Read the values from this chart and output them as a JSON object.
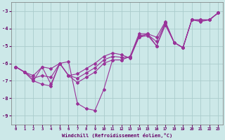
{
  "xlabel": "Windchill (Refroidissement éolien,°C)",
  "bg_color": "#cce8e8",
  "grid_color": "#aacccc",
  "line_color": "#993399",
  "ylim": [
    -9.5,
    -2.5
  ],
  "xlim": [
    -0.5,
    23.5
  ],
  "yticks": [
    -9,
    -8,
    -7,
    -6,
    -5,
    -4,
    -3
  ],
  "xticks": [
    0,
    1,
    2,
    3,
    4,
    5,
    6,
    7,
    8,
    9,
    10,
    11,
    12,
    13,
    14,
    15,
    16,
    17,
    18,
    19,
    20,
    21,
    22,
    23
  ],
  "x": [
    0,
    1,
    2,
    3,
    4,
    5,
    6,
    7,
    8,
    9,
    10,
    11,
    12,
    13,
    14,
    15,
    16,
    17,
    18,
    19,
    20,
    21,
    22,
    23
  ],
  "line1": [
    -6.2,
    -6.5,
    -6.7,
    -6.2,
    -6.3,
    -6.0,
    -6.7,
    -6.6,
    -6.3,
    -6.0,
    -5.6,
    -5.4,
    -5.5,
    -5.7,
    -4.5,
    -4.4,
    -5.0,
    -3.7,
    -4.8,
    -5.1,
    -3.5,
    -3.6,
    -3.5,
    -3.1
  ],
  "line2": [
    -6.2,
    -6.5,
    -7.0,
    -7.2,
    -7.3,
    -6.0,
    -6.7,
    -7.1,
    -6.8,
    -6.5,
    -6.0,
    -5.8,
    -5.8,
    -5.6,
    -4.3,
    -4.3,
    -4.5,
    -3.6,
    -4.8,
    -5.1,
    -3.5,
    -3.5,
    -3.5,
    -3.1
  ],
  "line3": [
    -6.2,
    -6.5,
    -6.85,
    -6.7,
    -6.8,
    -6.0,
    -6.7,
    -6.85,
    -6.55,
    -6.25,
    -5.8,
    -5.6,
    -5.65,
    -5.65,
    -4.4,
    -4.35,
    -4.75,
    -3.65,
    -4.8,
    -5.1,
    -3.5,
    -3.55,
    -3.5,
    -3.1
  ],
  "line4": [
    -6.2,
    -6.5,
    -7.0,
    -6.2,
    -7.2,
    -6.0,
    -5.9,
    -8.3,
    -8.6,
    -8.7,
    -7.5,
    -5.8,
    -5.8,
    -5.6,
    -4.5,
    -4.3,
    -5.0,
    -3.8,
    -4.8,
    -5.1,
    -3.5,
    -3.5,
    -3.5,
    -3.1
  ]
}
